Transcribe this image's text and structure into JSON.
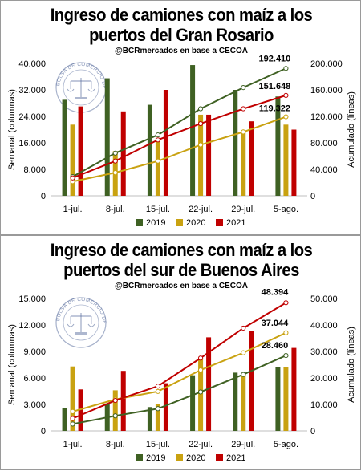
{
  "chart_data": [
    {
      "type": "bar+line",
      "title_lines": [
        "Ingreso de camiones con maíz a los",
        "puertos del Gran Rosario"
      ],
      "subtitle": "@BCRmercados en base a CECOA",
      "categories": [
        "1-jul.",
        "8-jul.",
        "15-jul.",
        "22-jul.",
        "29-jul.",
        "5-ago."
      ],
      "ylabel": "Semanal (columnas)",
      "y2label": "Acumulado (líneas)",
      "ylim": [
        0,
        40000
      ],
      "yticks": [
        "0",
        "8.000",
        "16.000",
        "24.000",
        "32.000",
        "40.000"
      ],
      "y2lim": [
        0,
        200000
      ],
      "y2ticks": [
        "0",
        "40.000",
        "80.000",
        "120.000",
        "160.000",
        "200.000"
      ],
      "series": [
        {
          "name": "2019",
          "color": "#3f6123",
          "bars": [
            29000,
            35500,
            27500,
            39500,
            32000,
            30000
          ],
          "cumulative": [
            29000,
            64500,
            92000,
            131500,
            163500,
            192410
          ]
        },
        {
          "name": "2020",
          "color": "#c9a211",
          "bars": [
            21500,
            13500,
            17500,
            24500,
            19500,
            21500
          ],
          "cumulative": [
            21500,
            35000,
            52500,
            77000,
            96500,
            119322
          ]
        },
        {
          "name": "2021",
          "color": "#c00000",
          "bars": [
            27000,
            25500,
            32000,
            24500,
            22500,
            20000
          ],
          "cumulative": [
            27000,
            52500,
            84500,
            109000,
            131500,
            151648
          ]
        }
      ],
      "end_labels": [
        "192.410",
        "119.322",
        "151.648"
      ],
      "logo_text": "BOLSA DE COMERCIO DE ROSARIO"
    },
    {
      "type": "bar+line",
      "title_lines": [
        "Ingreso de camiones con maíz a los",
        "puertos del sur de Buenos Aires"
      ],
      "subtitle": "@BCRmercados en base a CECOA",
      "categories": [
        "1-jul.",
        "8-jul.",
        "15-jul.",
        "22-jul.",
        "29-jul.",
        "5-ago."
      ],
      "ylabel": "Semanal (columnas)",
      "y2label": "Acumulado (líneas)",
      "ylim": [
        0,
        15000
      ],
      "yticks": [
        "0",
        "3.000",
        "6.000",
        "9.000",
        "12.000",
        "15.000"
      ],
      "y2lim": [
        0,
        50000
      ],
      "y2ticks": [
        "0",
        "10.000",
        "20.000",
        "30.000",
        "40.000",
        "50.000"
      ],
      "series": [
        {
          "name": "2019",
          "color": "#3f6123",
          "bars": [
            2600,
            3100,
            2700,
            6300,
            6600,
            7200
          ],
          "cumulative": [
            2600,
            5700,
            8400,
            14700,
            21300,
            28460
          ]
        },
        {
          "name": "2020",
          "color": "#c9a211",
          "bars": [
            7300,
            4600,
            3000,
            8100,
            6500,
            7200
          ],
          "cumulative": [
            7300,
            11900,
            14900,
            23000,
            29500,
            37044
          ]
        },
        {
          "name": "2021",
          "color": "#c00000",
          "bars": [
            4700,
            6800,
            5400,
            10600,
            11300,
            9400
          ],
          "cumulative": [
            4700,
            11500,
            16900,
            27500,
            38800,
            48394
          ]
        }
      ],
      "end_labels": [
        "28.460",
        "37.044",
        "48.394"
      ],
      "logo_text": "BOLSA DE COMERCIO DE ROSARIO"
    }
  ]
}
